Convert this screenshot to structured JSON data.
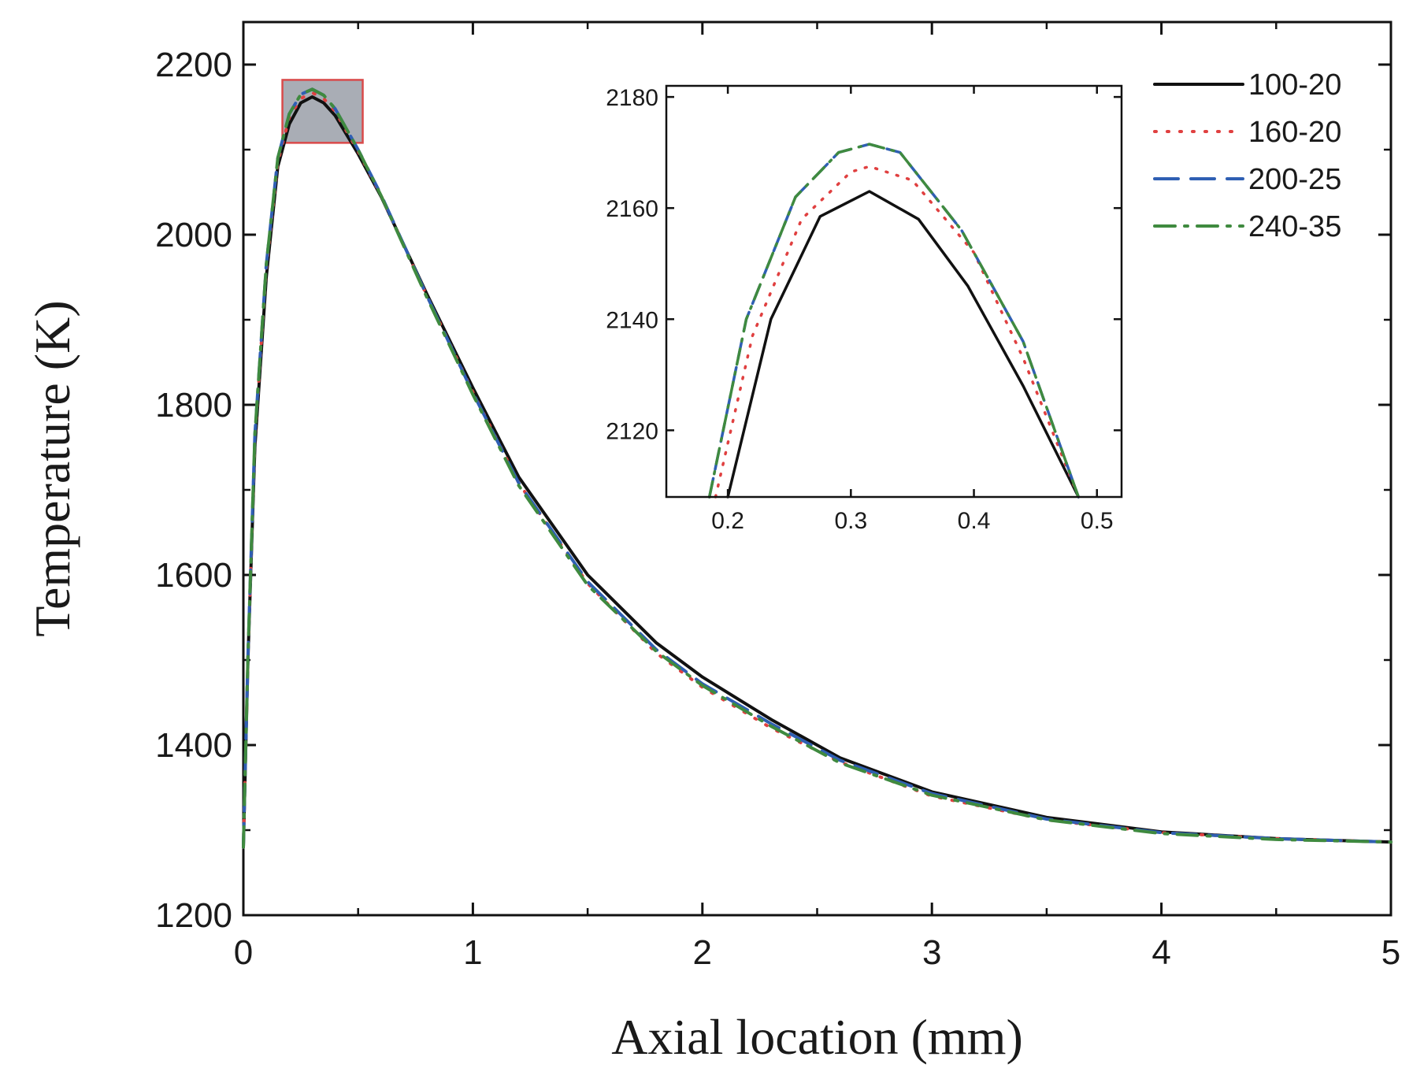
{
  "chart_data": {
    "type": "line",
    "main": {
      "xlabel": "Axial location (mm)",
      "ylabel": "Temperature (K)",
      "xlim": [
        0,
        5
      ],
      "ylim": [
        1200,
        2250
      ],
      "xticks": [
        0,
        1,
        2,
        3,
        4,
        5
      ],
      "yticks": [
        1200,
        1400,
        1600,
        1800,
        2000,
        2200
      ],
      "zoom_box": {
        "x": [
          0.17,
          0.52
        ],
        "y": [
          2108,
          2182
        ],
        "fill": "#a9adb5",
        "stroke": "#d94a4a"
      },
      "series": [
        {
          "name": "100-20",
          "color": "#111111",
          "dash": "solid",
          "x": [
            0,
            0.02,
            0.05,
            0.1,
            0.15,
            0.2,
            0.25,
            0.3,
            0.35,
            0.4,
            0.5,
            0.6,
            0.8,
            1.0,
            1.2,
            1.5,
            1.8,
            2.0,
            2.3,
            2.6,
            3.0,
            3.5,
            4.0,
            4.5,
            5.0
          ],
          "y": [
            1280,
            1500,
            1750,
            1950,
            2080,
            2130,
            2155,
            2162,
            2155,
            2140,
            2095,
            2045,
            1930,
            1820,
            1715,
            1600,
            1520,
            1480,
            1430,
            1385,
            1345,
            1315,
            1298,
            1290,
            1286
          ]
        },
        {
          "name": "160-20",
          "color": "#e04040",
          "dash": "dotted",
          "x": [
            0,
            0.02,
            0.05,
            0.1,
            0.15,
            0.2,
            0.25,
            0.3,
            0.35,
            0.4,
            0.5,
            0.6,
            0.8,
            1.0,
            1.2,
            1.5,
            1.8,
            2.0,
            2.3,
            2.6,
            3.0,
            3.5,
            4.0,
            4.5,
            5.0
          ],
          "y": [
            1280,
            1500,
            1760,
            1960,
            2085,
            2138,
            2160,
            2167,
            2160,
            2145,
            2098,
            2046,
            1928,
            1815,
            1708,
            1590,
            1508,
            1468,
            1420,
            1380,
            1340,
            1312,
            1297,
            1290,
            1286
          ]
        },
        {
          "name": "200-25",
          "color": "#2f5fb3",
          "dash": "dashed",
          "x": [
            0,
            0.02,
            0.05,
            0.1,
            0.15,
            0.2,
            0.25,
            0.3,
            0.35,
            0.4,
            0.5,
            0.6,
            0.8,
            1.0,
            1.2,
            1.5,
            1.8,
            2.0,
            2.3,
            2.6,
            3.0,
            3.5,
            4.0,
            4.5,
            5.0
          ],
          "y": [
            1280,
            1505,
            1765,
            1965,
            2090,
            2142,
            2165,
            2171,
            2164,
            2148,
            2100,
            2047,
            1928,
            1814,
            1708,
            1592,
            1512,
            1472,
            1425,
            1382,
            1343,
            1313,
            1297,
            1290,
            1286
          ]
        },
        {
          "name": "240-35",
          "color": "#3f8a3f",
          "dash": "dashdot",
          "x": [
            0,
            0.02,
            0.05,
            0.1,
            0.15,
            0.2,
            0.25,
            0.3,
            0.35,
            0.4,
            0.5,
            0.6,
            0.8,
            1.0,
            1.2,
            1.5,
            1.8,
            2.0,
            2.3,
            2.6,
            3.0,
            3.5,
            4.0,
            4.5,
            5.0
          ],
          "y": [
            1280,
            1505,
            1765,
            1965,
            2090,
            2142,
            2165,
            2171,
            2164,
            2148,
            2100,
            2046,
            1926,
            1812,
            1705,
            1588,
            1510,
            1470,
            1422,
            1379,
            1341,
            1312,
            1296,
            1289,
            1286
          ]
        }
      ]
    },
    "inset": {
      "xlim": [
        0.15,
        0.52
      ],
      "ylim": [
        2108,
        2182
      ],
      "xticks": [
        0.2,
        0.3,
        0.4,
        0.5
      ],
      "xtick_labels": [
        "0.2",
        "0.3",
        "0.4",
        "0.5"
      ],
      "yticks": [
        2120,
        2140,
        2160,
        2180
      ],
      "series": [
        {
          "name": "100-20",
          "x": [
            0.2,
            0.235,
            0.275,
            0.315,
            0.355,
            0.395,
            0.44,
            0.485
          ],
          "y": [
            2108,
            2140,
            2158.5,
            2163,
            2158,
            2146,
            2128,
            2108
          ]
        },
        {
          "name": "160-20",
          "x": [
            0.19,
            0.22,
            0.26,
            0.3,
            0.315,
            0.35,
            0.4,
            0.44,
            0.485
          ],
          "y": [
            2108,
            2137,
            2158,
            2166.5,
            2167.5,
            2165,
            2152,
            2133,
            2108
          ]
        },
        {
          "name": "200-25",
          "x": [
            0.185,
            0.215,
            0.255,
            0.29,
            0.315,
            0.34,
            0.39,
            0.44,
            0.485
          ],
          "y": [
            2108,
            2140,
            2162,
            2170,
            2171.5,
            2170,
            2156,
            2136,
            2108
          ]
        },
        {
          "name": "240-35",
          "x": [
            0.185,
            0.215,
            0.255,
            0.29,
            0.315,
            0.34,
            0.39,
            0.44,
            0.485
          ],
          "y": [
            2108,
            2140,
            2162,
            2170,
            2171.5,
            2170,
            2156,
            2136,
            2108
          ]
        }
      ]
    },
    "legend": {
      "placement": "top-right",
      "entries": [
        "100-20",
        "160-20",
        "200-25",
        "240-35"
      ]
    }
  }
}
